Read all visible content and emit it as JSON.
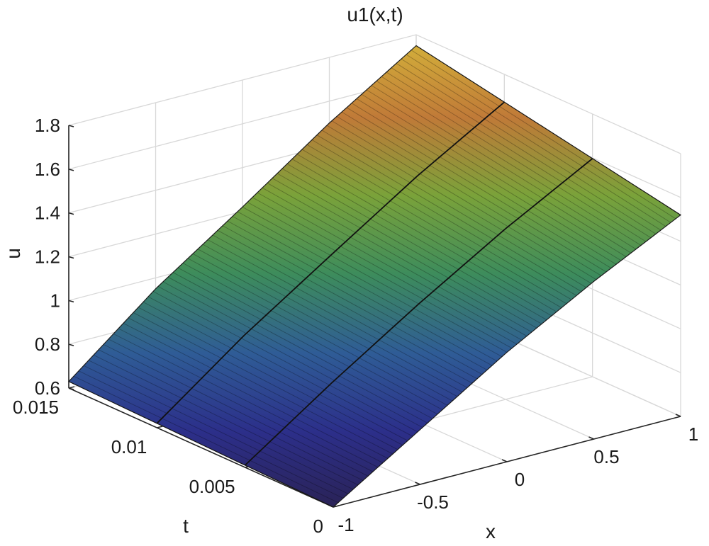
{
  "chart_data": {
    "type": "surface",
    "title": "u1(x,t)",
    "xlabel": "x",
    "ylabel": "t",
    "zlabel": "u",
    "xlim": [
      -1,
      1
    ],
    "ylim": [
      0,
      0.015
    ],
    "zlim": [
      0.6,
      1.8
    ],
    "x_ticks": [
      -1,
      -0.5,
      0,
      0.5,
      1
    ],
    "x_tick_labels": [
      "-1",
      "-0.5",
      "0",
      "0.5",
      "1"
    ],
    "y_ticks": [
      0,
      0.005,
      0.01,
      0.015
    ],
    "y_tick_labels": [
      "0",
      "0.005",
      "0.01",
      "0.015"
    ],
    "z_ticks": [
      0.6,
      0.8,
      1,
      1.2,
      1.4,
      1.6,
      1.8
    ],
    "z_tick_labels": [
      "0.6",
      "0.8",
      "1",
      "1.2",
      "1.4",
      "1.6",
      "1.8"
    ],
    "grid": true,
    "surface_values": {
      "x": [
        -1,
        -0.5,
        0,
        0.5,
        1
      ],
      "t": [
        0,
        0.015
      ],
      "u_t0": [
        0.6,
        0.85,
        1.1,
        1.32,
        1.52
      ],
      "u_t015": [
        0.63,
        0.95,
        1.22,
        1.5,
        1.75
      ]
    },
    "highlighted_t_lines": [
      0.005,
      0.01
    ],
    "colormap": [
      "#2a2255",
      "#2c2f8a",
      "#2f5c96",
      "#3d8c5c",
      "#7aa23a",
      "#c07a38",
      "#d4b23a"
    ]
  }
}
